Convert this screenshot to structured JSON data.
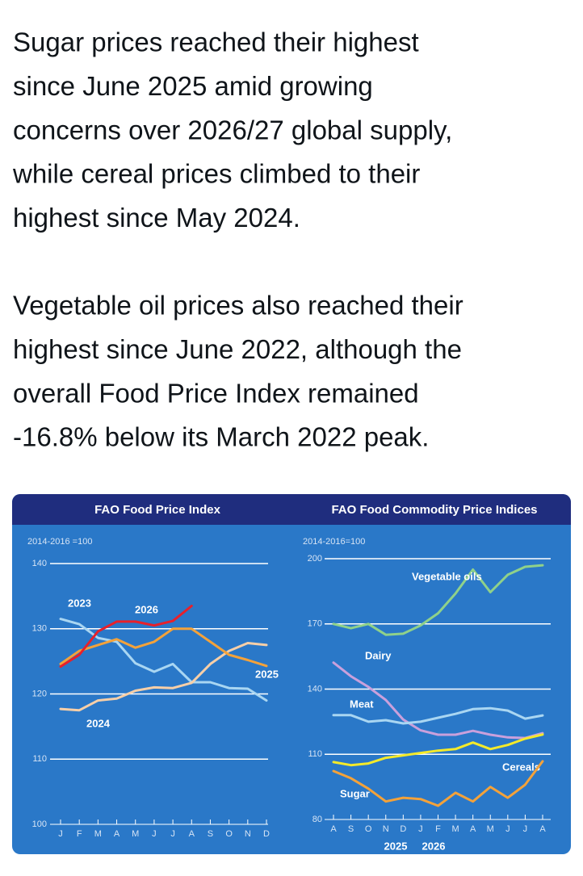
{
  "post": {
    "paragraphs": [
      [
        "Sugar prices reached their highest",
        "since June 2025 amid growing",
        "concerns over 2026/27 global supply,",
        "while cereal prices climbed to their",
        "highest since May 2024."
      ],
      [
        "Vegetable oil prices also reached their",
        "highest since June 2022, although the",
        "overall Food Price Index remained",
        "-16.8% below its March 2022 peak."
      ]
    ]
  },
  "chart_data": [
    {
      "type": "line",
      "title": "FAO Food Price Index",
      "subtitle": "2014-2016 =100",
      "categories": [
        "J",
        "F",
        "M",
        "A",
        "M",
        "J",
        "J",
        "A",
        "S",
        "O",
        "N",
        "D"
      ],
      "series": [
        {
          "name": "2023",
          "color": "#a9d6f2",
          "values": [
            131.5,
            130.7,
            128.6,
            128,
            124.7,
            123.4,
            124.6,
            121.8,
            121.8,
            120.9,
            120.8,
            119
          ]
        },
        {
          "name": "2024",
          "color": "#f7cfa8",
          "values": [
            117.7,
            117.5,
            119,
            119.3,
            120.5,
            121,
            120.9,
            121.7,
            124.6,
            126.6,
            127.8,
            127.5
          ]
        },
        {
          "name": "2025",
          "color": "#f3a23a",
          "values": [
            124.6,
            126.6,
            127.5,
            128.4,
            127.1,
            128,
            130,
            130,
            128,
            126,
            125.2,
            124.3
          ]
        },
        {
          "name": "2026",
          "color": "#e8202a",
          "values": [
            124.2,
            126,
            129.6,
            131.1,
            131.1,
            130.5,
            131.2,
            133.5,
            null,
            null,
            null,
            null
          ]
        }
      ],
      "ylim": [
        100,
        140
      ],
      "yticks": [
        100,
        110,
        120,
        130,
        140
      ],
      "grid": true
    },
    {
      "type": "line",
      "title": "FAO Food Commodity Price Indices",
      "subtitle": "2014-2016=100",
      "categories": [
        "A",
        "S",
        "O",
        "N",
        "D",
        "J",
        "F",
        "M",
        "A",
        "M",
        "J",
        "J",
        "A"
      ],
      "annotations": [
        "2025",
        "2026"
      ],
      "series": [
        {
          "name": "Vegetable oils",
          "color": "#8fd18a",
          "values": [
            170,
            168,
            170,
            165,
            165.5,
            169.3,
            174.9,
            184,
            195,
            184.6,
            192.6,
            196.3,
            197
          ]
        },
        {
          "name": "Dairy",
          "color": "#c9a0dc",
          "values": [
            152.2,
            145.9,
            141,
            135,
            126,
            121,
            119,
            119,
            120.8,
            119,
            117.8,
            117.5,
            119.7
          ]
        },
        {
          "name": "Meat",
          "color": "#a9d6f2",
          "values": [
            128,
            128,
            125,
            125.7,
            124.2,
            125,
            126.8,
            128.6,
            130.8,
            131.2,
            130.1,
            126.4,
            127.9
          ]
        },
        {
          "name": "Cereals",
          "color": "#f4ea2a",
          "values": [
            106.4,
            105,
            105.8,
            108.4,
            109.5,
            110.6,
            111.7,
            112.4,
            115.4,
            112.4,
            114.3,
            117.2,
            119.1
          ]
        },
        {
          "name": "Sugar",
          "color": "#f3a23a",
          "values": [
            102.3,
            99,
            94.2,
            88.3,
            90,
            89.4,
            86.3,
            92.3,
            88.3,
            95,
            90,
            96,
            106.8
          ]
        }
      ],
      "ylim": [
        80,
        200
      ],
      "yticks": [
        80,
        110,
        140,
        170,
        200
      ],
      "grid": true
    }
  ]
}
